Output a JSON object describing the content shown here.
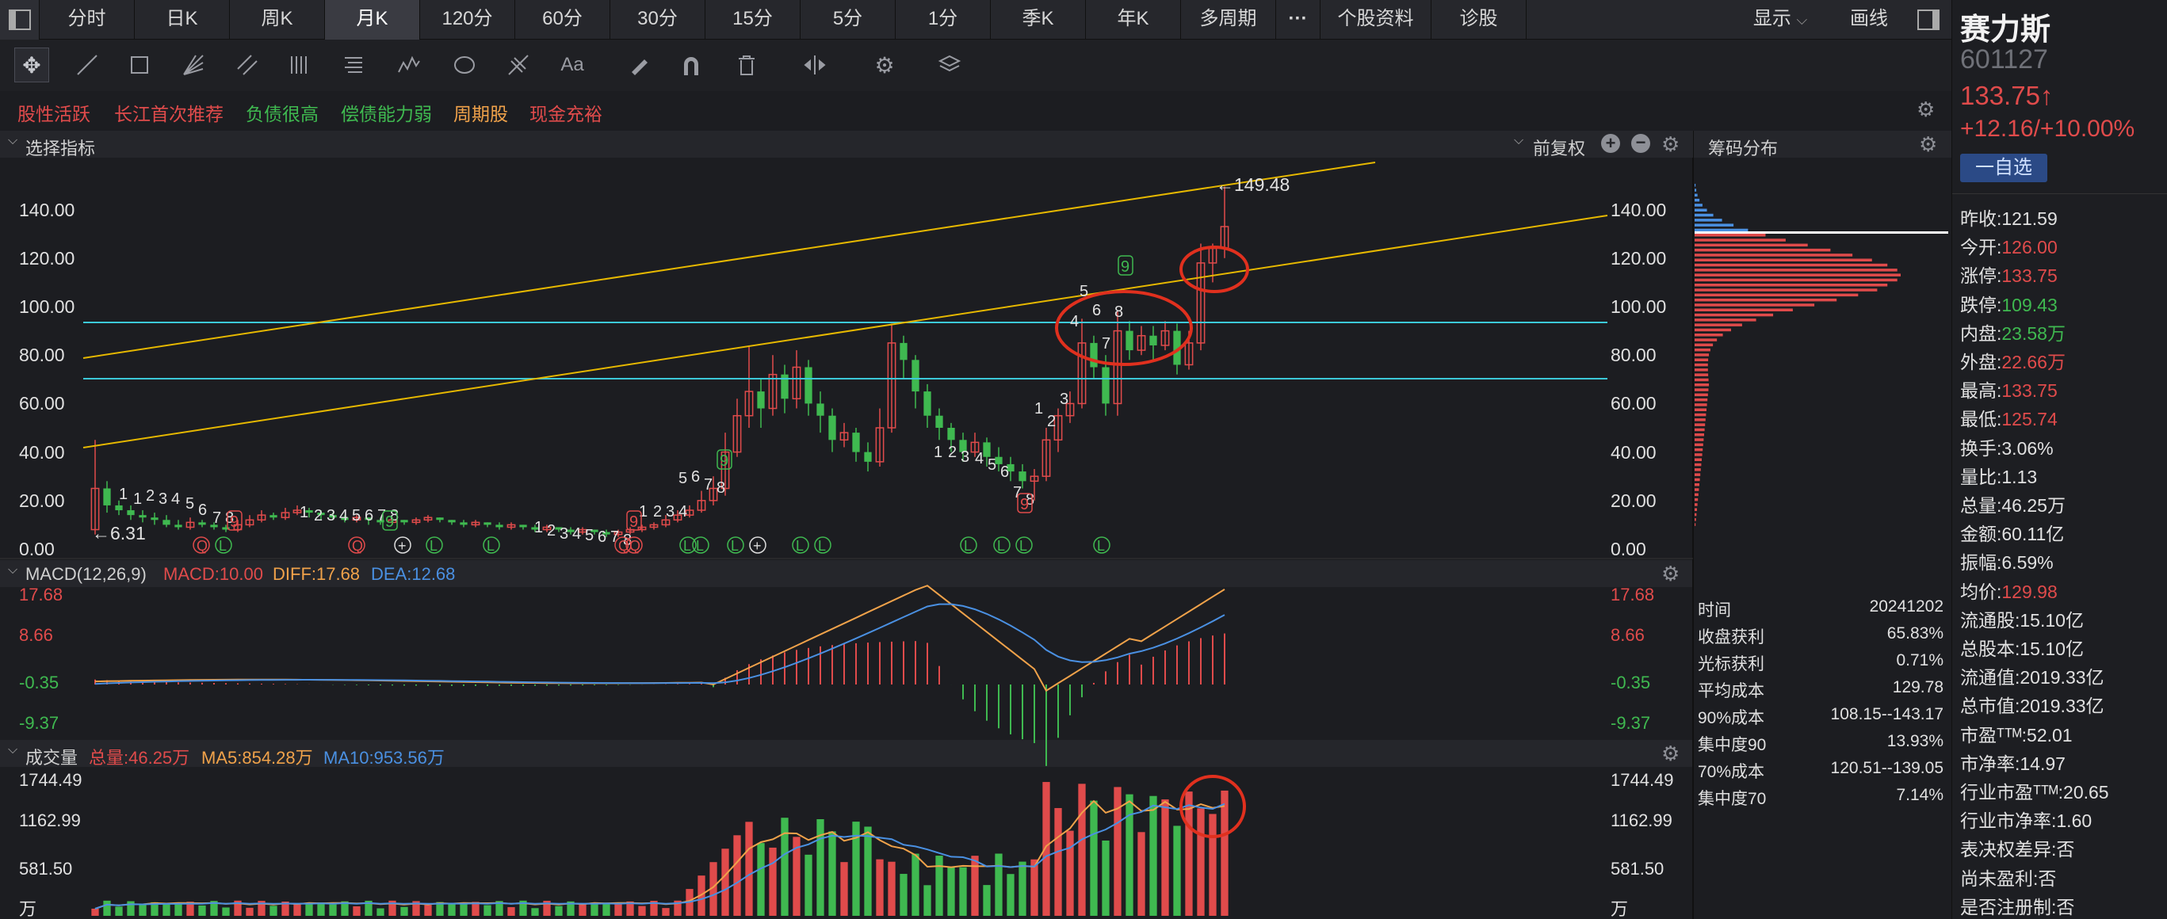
{
  "tabs": [
    "分时",
    "日K",
    "周K",
    "月K",
    "120分",
    "60分",
    "30分",
    "15分",
    "5分",
    "1分",
    "季K",
    "年K",
    "多周期",
    "···",
    "个股资料",
    "诊股"
  ],
  "active_tab": "月K",
  "header_right": {
    "display": "显示",
    "draw": "画线"
  },
  "tags": [
    {
      "label": "股性活跃",
      "color": "#e04b4b"
    },
    {
      "label": "长江首次推荐",
      "color": "#e04b4b"
    },
    {
      "label": "负债很高",
      "color": "#3fb950"
    },
    {
      "label": "偿债能力弱",
      "color": "#3fb950"
    },
    {
      "label": "周期股",
      "color": "#f0a24a"
    },
    {
      "label": "现金充裕",
      "color": "#e04b4b"
    }
  ],
  "main_chart": {
    "indicator_select": "选择指标",
    "adjust": "前复权",
    "high_label": "149.48",
    "low_label": "6.31",
    "y_ticks": [
      "140.00",
      "120.00",
      "100.00",
      "80.00",
      "60.00",
      "40.00",
      "20.00",
      "0.00"
    ]
  },
  "chips": {
    "title": "筹码分布",
    "rows": [
      {
        "k": "时间",
        "v": "20241202"
      },
      {
        "k": "收盘获利",
        "v": "65.83%"
      },
      {
        "k": "光标获利",
        "v": "0.71%"
      },
      {
        "k": "平均成本",
        "v": "129.78"
      },
      {
        "k": "90%成本",
        "v": "108.15--143.17"
      },
      {
        "k": "集中度90",
        "v": "13.93%"
      },
      {
        "k": "70%成本",
        "v": "120.51--139.05"
      },
      {
        "k": "集中度70",
        "v": "7.14%"
      }
    ]
  },
  "macd": {
    "label": "MACD(12,26,9)",
    "macd": "MACD:10.00",
    "diff": "DIFF:17.68",
    "dea": "DEA:12.68",
    "ticks": [
      "17.68",
      "8.66",
      "-0.35",
      "-9.37"
    ]
  },
  "volume": {
    "label": "成交量",
    "total": "总量:46.25万",
    "ma5": "MA5:854.28万",
    "ma10": "MA10:953.56万",
    "ticks": [
      "1744.49",
      "1162.99",
      "581.50",
      "万"
    ]
  },
  "stock": {
    "name": "赛力斯",
    "code": "601127",
    "price": "133.75↑",
    "change": "+12.16/+10.00%",
    "watch": "一自选",
    "stats": [
      {
        "k": "昨收:",
        "v": "121.59",
        "c": "#e1e1e1"
      },
      {
        "k": "今开:",
        "v": "126.00",
        "c": "#e04b4b"
      },
      {
        "k": "涨停:",
        "v": "133.75",
        "c": "#e04b4b"
      },
      {
        "k": "跌停:",
        "v": "109.43",
        "c": "#3fb950"
      },
      {
        "k": "内盘:",
        "v": "23.58万",
        "c": "#3fb950"
      },
      {
        "k": "外盘:",
        "v": "22.66万",
        "c": "#e04b4b"
      },
      {
        "k": "最高:",
        "v": "133.75",
        "c": "#e04b4b"
      },
      {
        "k": "最低:",
        "v": "125.74",
        "c": "#e04b4b"
      },
      {
        "k": "换手:",
        "v": "3.06%",
        "c": "#e1e1e1"
      },
      {
        "k": "量比:",
        "v": "1.13",
        "c": "#e1e1e1"
      },
      {
        "k": "总量:",
        "v": "46.25万",
        "c": "#e1e1e1"
      },
      {
        "k": "金额:",
        "v": "60.11亿",
        "c": "#e1e1e1"
      },
      {
        "k": "振幅:",
        "v": "6.59%",
        "c": "#e1e1e1"
      },
      {
        "k": "均价:",
        "v": "129.98",
        "c": "#e04b4b"
      },
      {
        "k": "流通股:",
        "v": "15.10亿",
        "c": "#e1e1e1"
      },
      {
        "k": "总股本:",
        "v": "15.10亿",
        "c": "#e1e1e1"
      },
      {
        "k": "流通值:",
        "v": "2019.33亿",
        "c": "#e1e1e1"
      },
      {
        "k": "总市值:",
        "v": "2019.33亿",
        "c": "#e1e1e1"
      },
      {
        "k": "市盈ᵀᵀᴹ:",
        "v": "52.01",
        "c": "#e1e1e1"
      },
      {
        "k": "市净率:",
        "v": "14.97",
        "c": "#e1e1e1"
      },
      {
        "k": "行业市盈ᵀᵀᴹ:",
        "v": "20.65",
        "c": "#e1e1e1"
      },
      {
        "k": "行业市净率:",
        "v": "1.60",
        "c": "#e1e1e1"
      },
      {
        "k": "表决权差异:",
        "v": "否",
        "c": "#e1e1e1"
      },
      {
        "k": "尚未盈利:",
        "v": "否",
        "c": "#e1e1e1"
      },
      {
        "k": "是否注册制:",
        "v": "否",
        "c": "#e1e1e1"
      }
    ]
  },
  "colors": {
    "up": "#e04b4b",
    "down": "#3fb950",
    "trend": "#e6b800",
    "hline": "#3cc9d8",
    "circle": "#e0301e"
  }
}
